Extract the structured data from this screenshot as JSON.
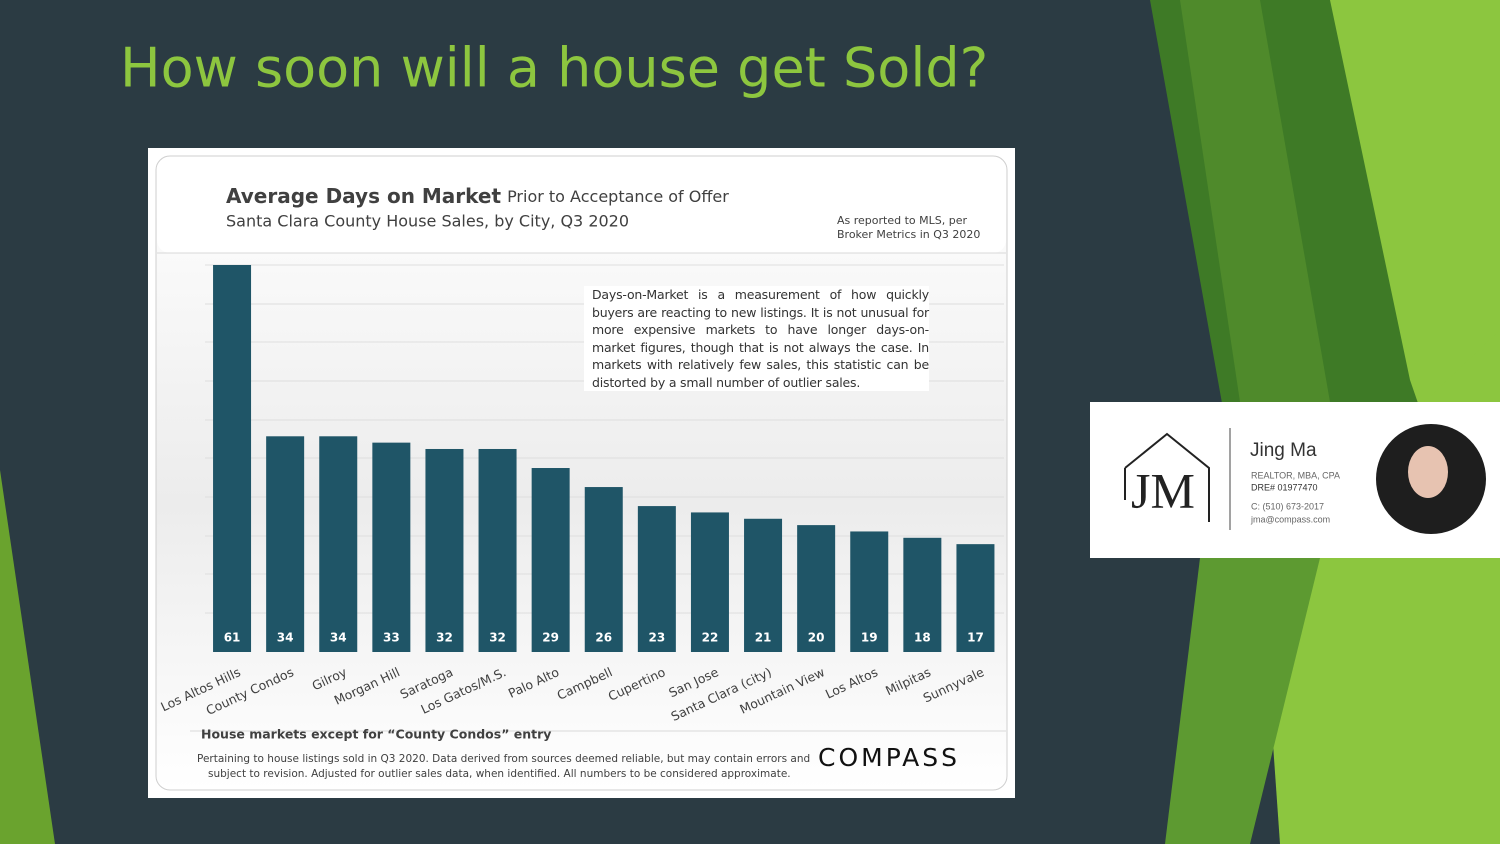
{
  "slide_title": "How soon will a house get Sold?",
  "chart_data": {
    "type": "bar",
    "title": "Average Days on Market",
    "title_note": "Prior to Acceptance of Offer",
    "subtitle": "Santa Clara County House Sales, by City, Q3 2020",
    "source_note": [
      "As reported to MLS, per",
      "Broker Metrics in Q3 2020"
    ],
    "annotation": "Days-on-Market is a measurement of how quickly buyers are reacting to new listings. It is not unusual for more expensive markets to have longer days-on-market figures, though that is not always the case. In markets with relatively few sales, this statistic can be distorted by a small number of outlier sales.",
    "categories": [
      "Los Altos Hills",
      "County Condos",
      "Gilroy",
      "Morgan Hill",
      "Saratoga",
      "Los Gatos/M.S.",
      "Palo Alto",
      "Campbell",
      "Cupertino",
      "San Jose",
      "Santa Clara (city)",
      "Mountain View",
      "Los Altos",
      "Milpitas",
      "Sunnyvale"
    ],
    "values": [
      61,
      34,
      34,
      33,
      32,
      32,
      29,
      26,
      23,
      22,
      21,
      20,
      19,
      18,
      17
    ],
    "color": "#1f5567",
    "ylim": [
      0,
      61
    ],
    "footnote": "House markets except for “County Condos” entry",
    "disclaimer": [
      "Pertaining to house listings sold in Q3 2020. Data derived from sources deemed reliable, but may contain errors and",
      "subject to revision. Adjusted for outlier sales data, when identified. All numbers to be considered approximate."
    ],
    "brand": "COMPASS"
  },
  "card": {
    "logo": "JM",
    "name": "Jing Ma",
    "credentials": "REALTOR, MBA, CPA",
    "license": "DRE# 01977470",
    "phone": "C: (510) 673-2017",
    "email": "jma@compass.com"
  }
}
